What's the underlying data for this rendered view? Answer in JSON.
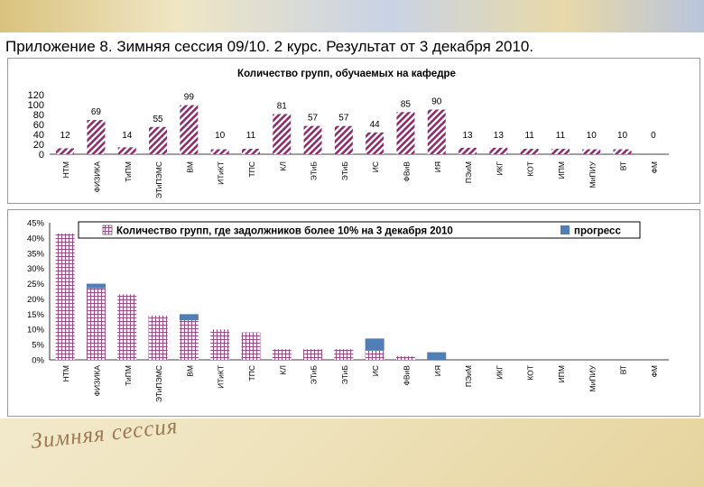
{
  "slide_title": "Приложение 8. Зимняя сессия 09/10.   2 курс.  Результат от 3 декабря 2010.",
  "footer_text": "Зимняя сессия",
  "colors": {
    "hatch": "#8b2d6a",
    "grid_fill": "#9e4a84",
    "progress": "#4f7fb5"
  },
  "chart_data": [
    {
      "type": "bar",
      "title": "Количество групп, обучаемых на кафедре",
      "categories": [
        "НТМ",
        "ФИЗИКА",
        "ТиПМ",
        "ЭТиПЭМС",
        "ВМ",
        "ИТиКТ",
        "ТПС",
        "КЛ",
        "ЭТиБ",
        "ЭТиБ",
        "ИС",
        "ФВиВ",
        "ИЯ",
        "ПЭиМ",
        "ИКГ",
        "КОТ",
        "ИПМ",
        "МиПИУ",
        "ВТ",
        "ФМ"
      ],
      "values": [
        12,
        69,
        14,
        55,
        99,
        10,
        11,
        81,
        57,
        57,
        44,
        85,
        90,
        13,
        13,
        11,
        11,
        10,
        10,
        0
      ],
      "ylim": [
        0,
        120
      ],
      "yticks": [
        "0",
        "20",
        "40",
        "60",
        "80",
        "100",
        "120"
      ]
    },
    {
      "type": "bar",
      "stacked": true,
      "categories": [
        "НТМ",
        "ФИЗИКА",
        "ТиПМ",
        "ЭТиПЭМС",
        "ВМ",
        "ИТиКТ",
        "ТПС",
        "КЛ",
        "ЭТиБ",
        "ЭТиБ",
        "ИС",
        "ФВиВ",
        "ИЯ",
        "ПЭиМ",
        "ИКГ",
        "КОТ",
        "ИПМ",
        "МиПИУ",
        "ВТ",
        "ФМ"
      ],
      "series": [
        {
          "name": "Количество групп, где задолжников более  10% на 3 декабря 2010",
          "values": [
            41.5,
            23.5,
            21.5,
            14.5,
            13.0,
            10.0,
            9.0,
            3.5,
            3.5,
            3.5,
            3.0,
            1.2,
            0,
            0,
            0,
            0,
            0,
            0,
            0,
            0
          ]
        },
        {
          "name": "прогресс",
          "values": [
            0,
            1.5,
            0,
            0,
            2.0,
            0,
            0,
            0,
            0,
            0,
            4.0,
            0,
            2.5,
            0,
            0,
            0,
            0,
            0,
            0,
            0
          ]
        }
      ],
      "ylim": [
        0,
        45
      ],
      "yticks": [
        "0%",
        "5%",
        "10%",
        "15%",
        "20%",
        "25%",
        "30%",
        "35%",
        "40%",
        "45%"
      ]
    }
  ]
}
